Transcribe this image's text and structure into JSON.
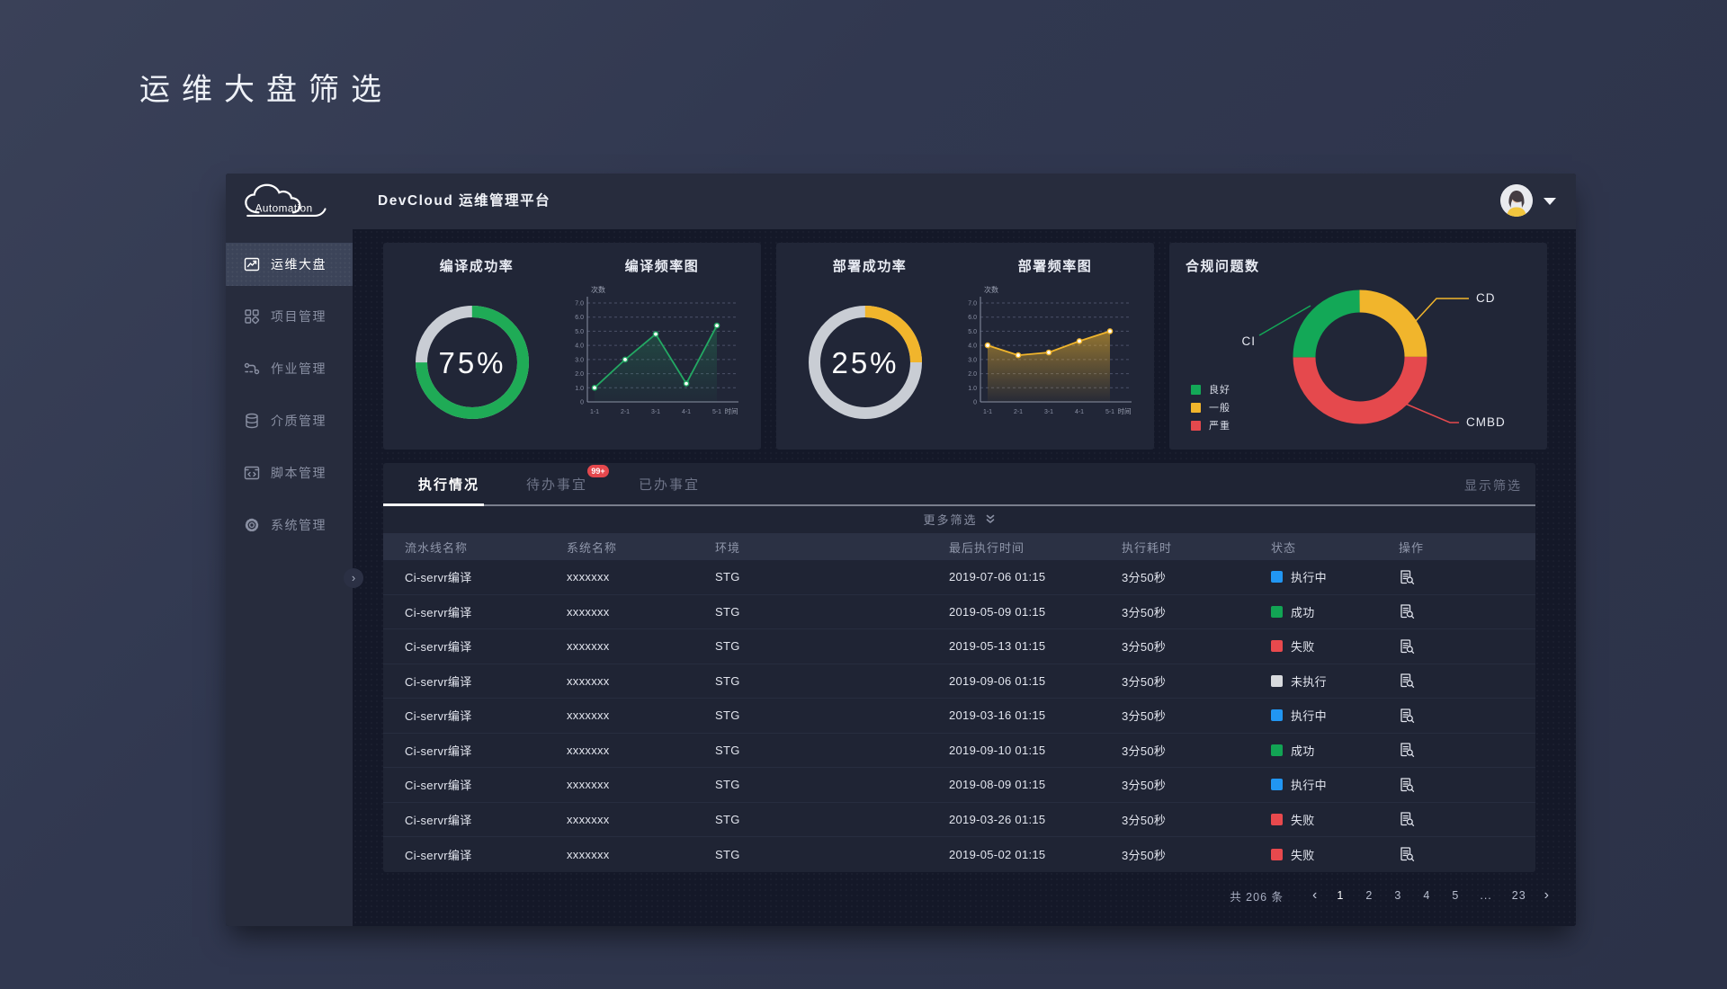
{
  "page": {
    "title": "运维大盘筛选"
  },
  "header": {
    "logo_text": "Automation",
    "title": "DevCloud 运维管理平台"
  },
  "sidebar": {
    "items": [
      {
        "key": "dashboard",
        "icon": "dashboard",
        "label": "运维大盘",
        "active": true
      },
      {
        "key": "projects",
        "icon": "projects",
        "label": "项目管理",
        "active": false
      },
      {
        "key": "jobs",
        "icon": "jobs",
        "label": "作业管理",
        "active": false
      },
      {
        "key": "media",
        "icon": "media",
        "label": "介质管理",
        "active": false
      },
      {
        "key": "scripts",
        "icon": "script",
        "label": "脚本管理",
        "active": false
      },
      {
        "key": "system",
        "icon": "gear",
        "label": "系统管理",
        "active": false
      }
    ]
  },
  "chart_data": [
    {
      "type": "donut",
      "title": "编译成功率",
      "value": 75,
      "label": "75%",
      "color": "#1fab56",
      "track": "#c9cdd4"
    },
    {
      "type": "line",
      "title": "编译频率图",
      "ylabel": "次数",
      "xlabel": "时间",
      "categories": [
        "1-1",
        "2-1",
        "3-1",
        "4-1",
        "5-1"
      ],
      "values": [
        1.0,
        3.0,
        4.8,
        1.3,
        5.4
      ],
      "yticks": [
        "7.0",
        "6.0",
        "5.0",
        "4.0",
        "3.0",
        "2.0",
        "1.0",
        "0"
      ],
      "ylim": [
        0,
        7
      ],
      "grid": "dashed",
      "color": "#23a863"
    },
    {
      "type": "donut",
      "title": "部署成功率",
      "value": 25,
      "label": "25%",
      "color": "#f1b52c",
      "track": "#c9cdd4"
    },
    {
      "type": "area",
      "title": "部署频率图",
      "ylabel": "次数",
      "xlabel": "时间",
      "categories": [
        "1-1",
        "2-1",
        "3-1",
        "4-1",
        "5-1"
      ],
      "values": [
        4.0,
        3.3,
        3.5,
        4.3,
        5.0
      ],
      "yticks": [
        "7.0",
        "6.0",
        "5.0",
        "4.0",
        "3.0",
        "2.0",
        "1.0",
        "0"
      ],
      "ylim": [
        0,
        7
      ],
      "grid": "dashed",
      "color": "#f1b52c"
    },
    {
      "type": "pie",
      "title": "合规问题数",
      "slices": [
        {
          "name": "CD",
          "value": 25,
          "color": "#f1b52c"
        },
        {
          "name": "CMBD",
          "value": 50,
          "color": "#e5494d"
        },
        {
          "name": "CI",
          "value": 25,
          "color": "#13a857"
        }
      ],
      "legend": [
        {
          "label": "良好",
          "color": "#13a857"
        },
        {
          "label": "一般",
          "color": "#f1b52c"
        },
        {
          "label": "严重",
          "color": "#e5494d"
        }
      ],
      "legend_position": "bottom-left"
    }
  ],
  "tabs": {
    "items": [
      {
        "label": "执行情况",
        "active": true,
        "badge": null
      },
      {
        "label": "待办事宜",
        "active": false,
        "badge": "99+"
      },
      {
        "label": "已办事宜",
        "active": false,
        "badge": null
      }
    ]
  },
  "filters": {
    "more": "更多筛选",
    "show": "显示筛选"
  },
  "table": {
    "columns": [
      "流水线名称",
      "系统名称",
      "环境",
      "最后执行时间",
      "执行耗时",
      "状态",
      "操作"
    ],
    "status_colors": {
      "执行中": "#2196f3",
      "成功": "#12a454",
      "失败": "#e8494d",
      "未执行": "#d8dade"
    },
    "rows": [
      {
        "pipeline": "Ci-servr编译",
        "system": "xxxxxxx",
        "env": "STG",
        "time": "2019-07-06 01:15",
        "duration": "3分50秒",
        "status": "执行中"
      },
      {
        "pipeline": "Ci-servr编译",
        "system": "xxxxxxx",
        "env": "STG",
        "time": "2019-05-09 01:15",
        "duration": "3分50秒",
        "status": "成功"
      },
      {
        "pipeline": "Ci-servr编译",
        "system": "xxxxxxx",
        "env": "STG",
        "time": "2019-05-13 01:15",
        "duration": "3分50秒",
        "status": "失败"
      },
      {
        "pipeline": "Ci-servr编译",
        "system": "xxxxxxx",
        "env": "STG",
        "time": "2019-09-06 01:15",
        "duration": "3分50秒",
        "status": "未执行"
      },
      {
        "pipeline": "Ci-servr编译",
        "system": "xxxxxxx",
        "env": "STG",
        "time": "2019-03-16 01:15",
        "duration": "3分50秒",
        "status": "执行中"
      },
      {
        "pipeline": "Ci-servr编译",
        "system": "xxxxxxx",
        "env": "STG",
        "time": "2019-09-10 01:15",
        "duration": "3分50秒",
        "status": "成功"
      },
      {
        "pipeline": "Ci-servr编译",
        "system": "xxxxxxx",
        "env": "STG",
        "time": "2019-08-09 01:15",
        "duration": "3分50秒",
        "status": "执行中"
      },
      {
        "pipeline": "Ci-servr编译",
        "system": "xxxxxxx",
        "env": "STG",
        "time": "2019-03-26 01:15",
        "duration": "3分50秒",
        "status": "失败"
      },
      {
        "pipeline": "Ci-servr编译",
        "system": "xxxxxxx",
        "env": "STG",
        "time": "2019-05-02 01:15",
        "duration": "3分50秒",
        "status": "失败"
      }
    ]
  },
  "pagination": {
    "total": "共 206 条",
    "prev": "‹",
    "next": "›",
    "pages": [
      "1",
      "2",
      "3",
      "4",
      "5",
      "...",
      "23"
    ],
    "current": "1"
  }
}
